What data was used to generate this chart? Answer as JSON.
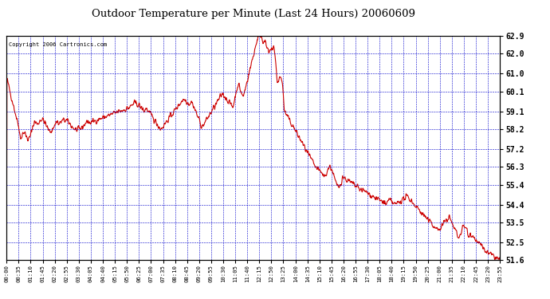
{
  "title": "Outdoor Temperature per Minute (Last 24 Hours) 20060609",
  "copyright_text": "Copyright 2006 Cartronics.com",
  "line_color": "#cc0000",
  "background_color": "#ffffff",
  "plot_background": "#ffffff",
  "grid_color": "#0000cc",
  "title_color": "#000000",
  "y_ticks": [
    51.6,
    52.5,
    53.5,
    54.4,
    55.4,
    56.3,
    57.2,
    58.2,
    59.1,
    60.1,
    61.0,
    62.0,
    62.9
  ],
  "x_tick_labels": [
    "00:00",
    "00:35",
    "01:10",
    "01:45",
    "02:20",
    "02:55",
    "03:30",
    "04:05",
    "04:40",
    "05:15",
    "05:50",
    "06:25",
    "07:00",
    "07:35",
    "08:10",
    "08:45",
    "09:20",
    "09:55",
    "10:30",
    "11:05",
    "11:40",
    "12:15",
    "12:50",
    "13:25",
    "14:00",
    "14:35",
    "15:10",
    "15:45",
    "16:20",
    "16:55",
    "17:30",
    "18:05",
    "18:40",
    "19:15",
    "19:50",
    "20:25",
    "21:00",
    "21:35",
    "22:10",
    "22:45",
    "23:20",
    "23:55"
  ],
  "ylim": [
    51.6,
    62.9
  ],
  "line_width": 0.8
}
